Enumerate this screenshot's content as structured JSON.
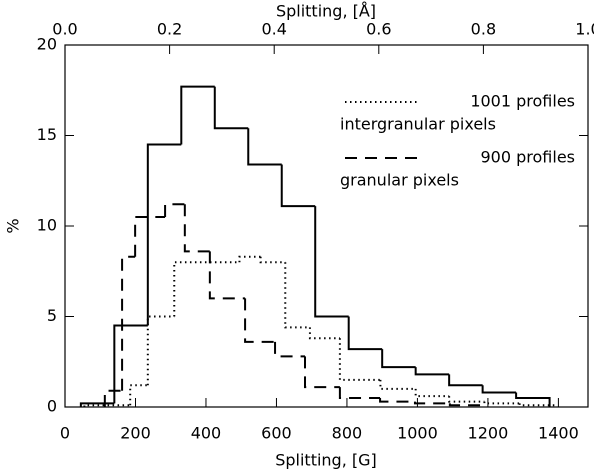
{
  "chart_data": {
    "type": "histogram",
    "xlabel": "Splitting, [G]",
    "x2label": "Splitting, [Å]",
    "ylabel": "%",
    "xlim": [
      0,
      1484
    ],
    "xticks": [
      0,
      200,
      400,
      600,
      800,
      1000,
      1200,
      1400
    ],
    "x2lim": [
      0,
      1
    ],
    "x2ticks": [
      {
        "value": 0,
        "label": "0.0"
      },
      0.2,
      0.4,
      0.6,
      0.8,
      {
        "value": 1,
        "label": "1.0"
      }
    ],
    "ylim": [
      0,
      20
    ],
    "yticks": [
      0,
      5,
      10,
      15,
      20
    ],
    "color": "#000000",
    "series": [
      {
        "dash": "solid",
        "bins": [
          45,
          140,
          235,
          330,
          425,
          520,
          615,
          710,
          805,
          900,
          995,
          1090,
          1185,
          1280,
          1375
        ],
        "values": [
          0.2,
          4.5,
          14.5,
          17.7,
          15.4,
          13.4,
          11.1,
          5.0,
          3.2,
          2.2,
          1.8,
          1.2,
          0.8,
          0.5
        ]
      },
      {
        "dash": "dotted",
        "name": "1001 profiles",
        "description": "intergranular pixels",
        "bins": [
          55,
          185,
          235,
          310,
          495,
          555,
          625,
          695,
          780,
          895,
          995,
          1090,
          1190,
          1290,
          1390
        ],
        "values": [
          0.1,
          1.2,
          5.0,
          8.0,
          8.3,
          8.0,
          4.4,
          3.8,
          1.5,
          1.0,
          0.6,
          0.3,
          0.2,
          0.1
        ]
      },
      {
        "dash": "dashed",
        "name": "900 profiles",
        "description": "granular pixels",
        "bins": [
          113,
          162,
          199,
          284,
          340,
          411,
          511,
          596,
          681,
          780,
          894,
          993,
          1092,
          1191
        ],
        "values": [
          0.9,
          8.3,
          10.5,
          11.2,
          8.6,
          6.0,
          3.6,
          2.8,
          1.1,
          0.5,
          0.3,
          0.2,
          0.1
        ]
      }
    ]
  }
}
